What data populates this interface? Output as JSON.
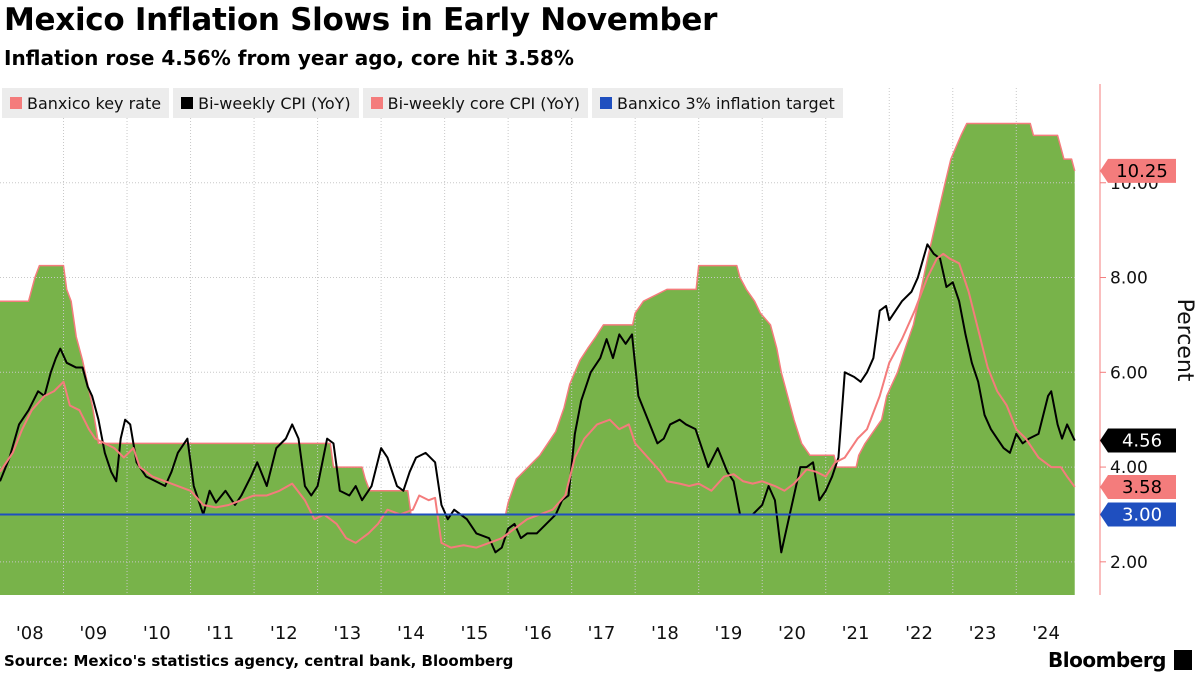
{
  "chart_data": {
    "type": "line",
    "title": "Mexico Inflation Slows in Early November",
    "subtitle": "Inflation rose 4.56% from year ago, core hit 3.58%",
    "y_label": "Percent",
    "source": "Source: Mexico's statistics agency, central bank, Bloomberg",
    "brand": "Bloomberg",
    "xlim": [
      2008,
      2024.94
    ],
    "ylim": [
      1.3,
      12.0
    ],
    "grid": true,
    "legend": "top-left",
    "xticks": [
      {
        "value": 2008,
        "label": "'08"
      },
      {
        "value": 2009,
        "label": "'09"
      },
      {
        "value": 2010,
        "label": "'10"
      },
      {
        "value": 2011,
        "label": "'11"
      },
      {
        "value": 2012,
        "label": "'12"
      },
      {
        "value": 2013,
        "label": "'13"
      },
      {
        "value": 2014,
        "label": "'14"
      },
      {
        "value": 2015,
        "label": "'15"
      },
      {
        "value": 2016,
        "label": "'16"
      },
      {
        "value": 2017,
        "label": "'17"
      },
      {
        "value": 2018,
        "label": "'18"
      },
      {
        "value": 2019,
        "label": "'19"
      },
      {
        "value": 2020,
        "label": "'20"
      },
      {
        "value": 2021,
        "label": "'21"
      },
      {
        "value": 2022,
        "label": "'22"
      },
      {
        "value": 2023,
        "label": "'23"
      },
      {
        "value": 2024,
        "label": "'24"
      }
    ],
    "yticks": [
      {
        "value": 2,
        "label": "2.00"
      },
      {
        "value": 4,
        "label": "4.00"
      },
      {
        "value": 6,
        "label": "6.00"
      },
      {
        "value": 8,
        "label": "8.00"
      },
      {
        "value": 10,
        "label": "10.00"
      }
    ],
    "series": [
      {
        "name": "Banxico key rate",
        "color": "#f47c7c",
        "fill": "#78b34a",
        "kind": "area",
        "end_label": "10.25",
        "x": [
          2008.0,
          2008.45,
          2008.5,
          2008.55,
          2008.62,
          2009.0,
          2009.05,
          2009.12,
          2009.2,
          2009.3,
          2009.38,
          2009.46,
          2009.55,
          2013.2,
          2013.25,
          2013.7,
          2013.75,
          2013.82,
          2014.42,
          2014.47,
          2015.96,
          2016.0,
          2016.13,
          2016.5,
          2016.75,
          2016.88,
          2016.97,
          2017.13,
          2017.25,
          2017.38,
          2017.5,
          2017.96,
          2018.0,
          2018.13,
          2018.5,
          2018.96,
          2019.0,
          2019.6,
          2019.65,
          2019.75,
          2019.88,
          2019.97,
          2020.13,
          2020.23,
          2020.3,
          2020.4,
          2020.5,
          2020.62,
          2020.75,
          2021.13,
          2021.17,
          2021.48,
          2021.52,
          2021.62,
          2021.75,
          2021.88,
          2021.96,
          2022.13,
          2022.25,
          2022.38,
          2022.5,
          2022.62,
          2022.75,
          2022.88,
          2022.97,
          2023.13,
          2023.22,
          2024.22,
          2024.27,
          2024.65,
          2024.7,
          2024.75,
          2024.87,
          2024.92
        ],
        "values": [
          7.5,
          7.5,
          7.75,
          8.0,
          8.25,
          8.25,
          7.75,
          7.5,
          6.75,
          6.25,
          5.75,
          5.25,
          4.5,
          4.5,
          4.0,
          4.0,
          3.75,
          3.5,
          3.5,
          3.0,
          3.0,
          3.25,
          3.75,
          4.25,
          4.75,
          5.25,
          5.75,
          6.25,
          6.5,
          6.75,
          7.0,
          7.0,
          7.25,
          7.5,
          7.75,
          7.75,
          8.25,
          8.25,
          8.0,
          7.75,
          7.5,
          7.25,
          7.0,
          6.5,
          6.0,
          5.5,
          5.0,
          4.5,
          4.25,
          4.25,
          4.0,
          4.0,
          4.25,
          4.5,
          4.75,
          5.0,
          5.5,
          6.0,
          6.5,
          7.0,
          7.75,
          8.5,
          9.25,
          10.0,
          10.5,
          11.0,
          11.25,
          11.25,
          11.0,
          11.0,
          10.75,
          10.5,
          10.5,
          10.25
        ]
      },
      {
        "name": "Bi-weekly CPI (YoY)",
        "color": "#000000",
        "kind": "line",
        "end_label": "4.56",
        "x": [
          2008.0,
          2008.15,
          2008.3,
          2008.45,
          2008.6,
          2008.7,
          2008.8,
          2008.88,
          2008.95,
          2009.05,
          2009.2,
          2009.3,
          2009.38,
          2009.45,
          2009.55,
          2009.65,
          2009.75,
          2009.83,
          2009.9,
          2009.97,
          2010.05,
          2010.15,
          2010.3,
          2010.45,
          2010.6,
          2010.7,
          2010.8,
          2010.95,
          2011.05,
          2011.2,
          2011.3,
          2011.4,
          2011.55,
          2011.7,
          2011.8,
          2011.95,
          2012.05,
          2012.2,
          2012.35,
          2012.5,
          2012.6,
          2012.7,
          2012.8,
          2012.9,
          2013.0,
          2013.15,
          2013.25,
          2013.35,
          2013.5,
          2013.6,
          2013.7,
          2013.85,
          2014.0,
          2014.1,
          2014.25,
          2014.35,
          2014.45,
          2014.55,
          2014.7,
          2014.85,
          2014.95,
          2015.05,
          2015.15,
          2015.35,
          2015.5,
          2015.7,
          2015.8,
          2015.9,
          2016.0,
          2016.1,
          2016.2,
          2016.3,
          2016.45,
          2016.6,
          2016.75,
          2016.85,
          2016.95,
          2017.05,
          2017.15,
          2017.3,
          2017.45,
          2017.55,
          2017.65,
          2017.75,
          2017.85,
          2017.95,
          2018.05,
          2018.2,
          2018.35,
          2018.45,
          2018.55,
          2018.7,
          2018.8,
          2018.95,
          2019.05,
          2019.15,
          2019.3,
          2019.45,
          2019.55,
          2019.65,
          2019.75,
          2019.85,
          2020.0,
          2020.1,
          2020.2,
          2020.3,
          2020.4,
          2020.5,
          2020.6,
          2020.7,
          2020.8,
          2020.9,
          2021.0,
          2021.1,
          2021.2,
          2021.3,
          2021.45,
          2021.55,
          2021.65,
          2021.75,
          2021.85,
          2021.95,
          2022.0,
          2022.1,
          2022.2,
          2022.35,
          2022.45,
          2022.6,
          2022.7,
          2022.8,
          2022.9,
          2023.0,
          2023.1,
          2023.2,
          2023.3,
          2023.4,
          2023.5,
          2023.6,
          2023.7,
          2023.8,
          2023.9,
          2024.0,
          2024.1,
          2024.2,
          2024.35,
          2024.5,
          2024.55,
          2024.65,
          2024.72,
          2024.8,
          2024.92
        ],
        "values": [
          3.7,
          4.2,
          4.9,
          5.2,
          5.6,
          5.5,
          6.0,
          6.3,
          6.5,
          6.2,
          6.1,
          6.1,
          5.7,
          5.5,
          5.0,
          4.3,
          3.9,
          3.7,
          4.6,
          5.0,
          4.9,
          4.1,
          3.8,
          3.7,
          3.6,
          3.9,
          4.3,
          4.6,
          3.6,
          3.0,
          3.5,
          3.25,
          3.5,
          3.2,
          3.4,
          3.8,
          4.1,
          3.6,
          4.4,
          4.6,
          4.9,
          4.6,
          3.6,
          3.4,
          3.6,
          4.6,
          4.5,
          3.5,
          3.4,
          3.6,
          3.3,
          3.6,
          4.4,
          4.2,
          3.6,
          3.5,
          3.9,
          4.2,
          4.3,
          4.1,
          3.2,
          2.9,
          3.1,
          2.9,
          2.6,
          2.5,
          2.2,
          2.3,
          2.7,
          2.8,
          2.5,
          2.6,
          2.6,
          2.8,
          3.0,
          3.3,
          3.4,
          4.7,
          5.4,
          6.0,
          6.3,
          6.7,
          6.3,
          6.8,
          6.6,
          6.8,
          5.5,
          5.0,
          4.5,
          4.6,
          4.9,
          5.0,
          4.9,
          4.8,
          4.4,
          4.0,
          4.4,
          3.9,
          3.7,
          3.0,
          3.0,
          3.0,
          3.2,
          3.6,
          3.3,
          2.2,
          2.8,
          3.4,
          4.0,
          4.0,
          4.1,
          3.3,
          3.5,
          3.8,
          4.2,
          6.0,
          5.9,
          5.8,
          6.0,
          6.3,
          7.3,
          7.4,
          7.1,
          7.3,
          7.5,
          7.7,
          8.0,
          8.7,
          8.5,
          8.4,
          7.8,
          7.9,
          7.5,
          6.8,
          6.2,
          5.8,
          5.1,
          4.8,
          4.6,
          4.4,
          4.3,
          4.7,
          4.5,
          4.6,
          4.7,
          5.5,
          5.6,
          4.9,
          4.6,
          4.9,
          4.56
        ]
      },
      {
        "name": "Bi-weekly core CPI (YoY)",
        "color": "#f47c7c",
        "kind": "line",
        "end_label": "3.58",
        "x": [
          2008.0,
          2008.2,
          2008.35,
          2008.5,
          2008.7,
          2008.85,
          2009.0,
          2009.1,
          2009.25,
          2009.4,
          2009.5,
          2009.65,
          2009.8,
          2009.95,
          2010.1,
          2010.2,
          2010.4,
          2010.6,
          2010.8,
          2011.0,
          2011.2,
          2011.4,
          2011.6,
          2011.8,
          2012.0,
          2012.2,
          2012.4,
          2012.6,
          2012.8,
          2012.95,
          2013.1,
          2013.3,
          2013.45,
          2013.6,
          2013.8,
          2013.95,
          2014.1,
          2014.3,
          2014.5,
          2014.6,
          2014.75,
          2014.85,
          2014.95,
          2015.1,
          2015.3,
          2015.5,
          2015.7,
          2015.9,
          2016.1,
          2016.3,
          2016.5,
          2016.7,
          2016.9,
          2017.05,
          2017.2,
          2017.4,
          2017.6,
          2017.75,
          2017.9,
          2018.0,
          2018.2,
          2018.4,
          2018.5,
          2018.7,
          2018.85,
          2019.0,
          2019.2,
          2019.4,
          2019.55,
          2019.7,
          2019.85,
          2020.0,
          2020.2,
          2020.35,
          2020.5,
          2020.7,
          2020.85,
          2021.0,
          2021.15,
          2021.3,
          2021.5,
          2021.65,
          2021.85,
          2022.0,
          2022.2,
          2022.4,
          2022.6,
          2022.75,
          2022.85,
          2022.95,
          2023.1,
          2023.25,
          2023.4,
          2023.55,
          2023.7,
          2023.85,
          2024.0,
          2024.15,
          2024.35,
          2024.55,
          2024.7,
          2024.8,
          2024.92
        ],
        "values": [
          3.9,
          4.3,
          4.8,
          5.2,
          5.5,
          5.6,
          5.8,
          5.3,
          5.2,
          4.8,
          4.6,
          4.5,
          4.4,
          4.2,
          4.4,
          4.0,
          3.8,
          3.7,
          3.6,
          3.5,
          3.2,
          3.15,
          3.2,
          3.3,
          3.4,
          3.4,
          3.5,
          3.65,
          3.3,
          2.9,
          3.0,
          2.8,
          2.5,
          2.4,
          2.6,
          2.8,
          3.1,
          3.0,
          3.1,
          3.4,
          3.3,
          3.35,
          2.4,
          2.3,
          2.35,
          2.3,
          2.4,
          2.5,
          2.7,
          2.9,
          3.0,
          3.1,
          3.4,
          4.2,
          4.6,
          4.9,
          5.0,
          4.8,
          4.9,
          4.5,
          4.2,
          3.9,
          3.7,
          3.65,
          3.6,
          3.65,
          3.5,
          3.8,
          3.85,
          3.7,
          3.65,
          3.7,
          3.6,
          3.5,
          3.65,
          3.95,
          3.9,
          3.8,
          4.1,
          4.2,
          4.6,
          4.8,
          5.5,
          6.2,
          6.7,
          7.3,
          8.0,
          8.4,
          8.5,
          8.4,
          8.3,
          7.7,
          6.9,
          6.1,
          5.6,
          5.3,
          4.8,
          4.6,
          4.2,
          4.0,
          4.0,
          3.8,
          3.58
        ]
      },
      {
        "name": "Banxico 3% inflation target",
        "color": "#1f4fbf",
        "kind": "line",
        "end_label": "3.00",
        "x": [
          2008.0,
          2024.92
        ],
        "values": [
          3,
          3
        ]
      }
    ]
  }
}
